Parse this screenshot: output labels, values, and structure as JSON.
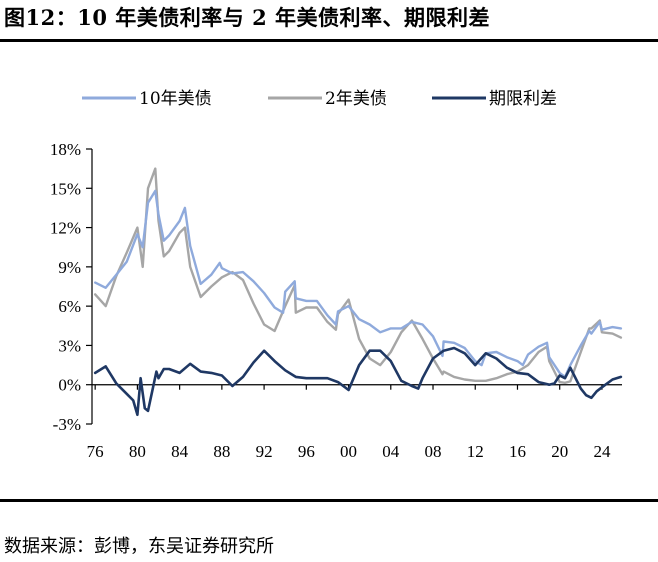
{
  "header": {
    "title": "图12：10 年美债利率与 2 年美债利率、期限利差"
  },
  "footer": {
    "source": "数据来源：彭博，东吴证券研究所"
  },
  "chart_data": {
    "type": "line",
    "xlabel": "",
    "ylabel": "",
    "ylim": [
      -3,
      18
    ],
    "xlim": [
      1975.7,
      2025.9
    ],
    "y_ticks": [
      -3,
      0,
      3,
      6,
      9,
      12,
      15,
      18
    ],
    "y_tick_labels": [
      "-3%",
      "0%",
      "3%",
      "6%",
      "9%",
      "12%",
      "15%",
      "18%"
    ],
    "x_ticks": [
      1976,
      1980,
      1984,
      1988,
      1992,
      1996,
      2000,
      2004,
      2008,
      2012,
      2016,
      2020,
      2024
    ],
    "x_tick_labels": [
      "76",
      "80",
      "84",
      "88",
      "92",
      "96",
      "00",
      "04",
      "08",
      "12",
      "16",
      "20",
      "24"
    ],
    "legend_position": "top",
    "grid": false,
    "series": [
      {
        "name": "10年美债",
        "color": "#8FAADC",
        "x": [
          1976,
          1977,
          1978,
          1979,
          1980,
          1980.5,
          1981,
          1981.7,
          1982,
          1982.5,
          1983,
          1984,
          1984.5,
          1985,
          1986,
          1987,
          1987.8,
          1988,
          1989,
          1990,
          1991,
          1992,
          1993,
          1993.8,
          1994,
          1994.9,
          1995,
          1996,
          1997,
          1998,
          1998.8,
          1999,
          2000,
          2001,
          2002,
          2003,
          2004,
          2005,
          2006,
          2007,
          2008,
          2008.9,
          2009,
          2010,
          2011,
          2012,
          2012.6,
          2013,
          2014,
          2015,
          2016,
          2016.5,
          2017,
          2018,
          2018.8,
          2019,
          2020,
          2020.5,
          2021,
          2022,
          2022.8,
          2023,
          2023.8,
          2024,
          2025,
          2025.8
        ],
        "values": [
          7.8,
          7.4,
          8.4,
          9.4,
          11.5,
          10.5,
          13.9,
          14.8,
          13.0,
          11.0,
          11.4,
          12.5,
          13.5,
          10.6,
          7.7,
          8.4,
          9.3,
          8.9,
          8.5,
          8.6,
          7.9,
          7.0,
          5.9,
          5.5,
          7.1,
          7.9,
          6.6,
          6.4,
          6.4,
          5.3,
          4.6,
          5.6,
          6.0,
          5.0,
          4.6,
          4.0,
          4.3,
          4.3,
          4.8,
          4.6,
          3.7,
          2.2,
          3.3,
          3.2,
          2.8,
          1.8,
          1.5,
          2.4,
          2.5,
          2.1,
          1.8,
          1.5,
          2.3,
          2.9,
          3.2,
          2.1,
          0.9,
          0.6,
          1.5,
          3.0,
          4.1,
          3.9,
          4.8,
          4.2,
          4.4,
          4.3
        ]
      },
      {
        "name": "2年美债",
        "color": "#A6A6A6",
        "x": [
          1976,
          1977,
          1978,
          1979,
          1980,
          1980.5,
          1981,
          1981.7,
          1982,
          1982.5,
          1983,
          1984,
          1984.5,
          1985,
          1986,
          1987,
          1988,
          1989,
          1990,
          1991,
          1992,
          1993,
          1994,
          1994.9,
          1995,
          1996,
          1997,
          1998,
          1998.8,
          1999,
          2000,
          2001,
          2002,
          2003,
          2004,
          2005,
          2006,
          2007,
          2008,
          2008.9,
          2009,
          2010,
          2011,
          2012,
          2013,
          2014,
          2015,
          2016,
          2017,
          2018,
          2018.8,
          2019,
          2020,
          2020.5,
          2021,
          2022,
          2022.8,
          2023,
          2023.8,
          2024,
          2025,
          2025.8
        ],
        "values": [
          6.9,
          6.0,
          8.3,
          10.1,
          12.0,
          9.0,
          15.0,
          16.5,
          12.5,
          9.8,
          10.2,
          11.6,
          12.0,
          9.0,
          6.7,
          7.5,
          8.2,
          8.6,
          8.0,
          6.2,
          4.6,
          4.1,
          6.0,
          7.6,
          5.5,
          5.9,
          5.9,
          4.8,
          4.2,
          5.4,
          6.5,
          3.5,
          2.0,
          1.5,
          2.5,
          4.0,
          4.9,
          3.5,
          2.0,
          0.8,
          1.0,
          0.6,
          0.4,
          0.3,
          0.3,
          0.5,
          0.8,
          1.0,
          1.5,
          2.5,
          2.9,
          1.8,
          0.2,
          0.15,
          0.25,
          2.5,
          4.3,
          4.3,
          4.9,
          4.0,
          3.9,
          3.6
        ]
      },
      {
        "name": "期限利差",
        "color": "#1F3864",
        "x": [
          1976,
          1977,
          1978,
          1979,
          1979.6,
          1980,
          1980.3,
          1980.7,
          1981,
          1981.4,
          1981.8,
          1982,
          1982.5,
          1983,
          1984,
          1985,
          1986,
          1987,
          1988,
          1989,
          1990,
          1991,
          1992,
          1993,
          1994,
          1995,
          1996,
          1997,
          1998,
          1999,
          2000,
          2001,
          2002,
          2003,
          2004,
          2005,
          2006,
          2006.6,
          2007,
          2008,
          2009,
          2010,
          2011,
          2012,
          2013,
          2014,
          2015,
          2016,
          2017,
          2018,
          2019,
          2019.5,
          2020,
          2020.5,
          2021,
          2022,
          2022.5,
          2023,
          2023.5,
          2024,
          2025,
          2025.8
        ],
        "values": [
          0.9,
          1.4,
          0.1,
          -0.7,
          -1.2,
          -2.3,
          0.5,
          -1.8,
          -2.0,
          -0.5,
          1.0,
          0.5,
          1.2,
          1.2,
          0.9,
          1.6,
          1.0,
          0.9,
          0.7,
          -0.1,
          0.6,
          1.7,
          2.6,
          1.8,
          1.1,
          0.6,
          0.5,
          0.5,
          0.5,
          0.2,
          -0.4,
          1.5,
          2.6,
          2.6,
          1.8,
          0.3,
          -0.1,
          -0.3,
          0.5,
          2.0,
          2.6,
          2.8,
          2.4,
          1.5,
          2.4,
          2.0,
          1.3,
          0.9,
          0.8,
          0.2,
          0.0,
          0.1,
          0.7,
          0.5,
          1.3,
          -0.3,
          -0.8,
          -1.0,
          -0.5,
          -0.2,
          0.4,
          0.6
        ]
      }
    ]
  }
}
